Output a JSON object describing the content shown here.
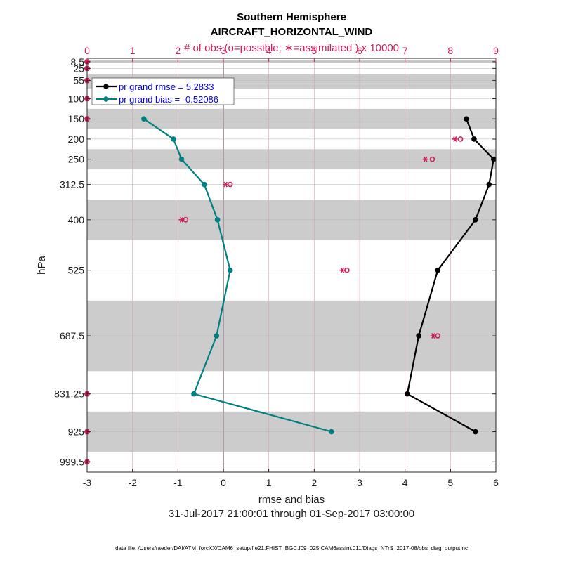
{
  "chart_data": {
    "type": "line",
    "title": "Southern Hemisphere",
    "subtitle": "AIRCRAFT_HORIZONTAL_WIND",
    "top_axis_label": "# of obs (o=possible; ∗=assimilated ) x 10000",
    "xlabel": "rmse and bias",
    "ylabel": "hPa",
    "date_range": "31-Jul-2017 21:00:01 through 01-Sep-2017 03:00:00",
    "footnote": "data file: /Users/raeder/DAI/ATM_forcXX/CAM6_setup/f.e21.FHIST_BGC.f09_025.CAM6assim.011/Diags_NTrS_2017-08/obs_diag_output.nc",
    "xlim": [
      -3,
      6
    ],
    "x_ticks": [
      "-3",
      "-2",
      "-1",
      "0",
      "1",
      "2",
      "3",
      "4",
      "5",
      "6"
    ],
    "top_xlim": [
      0,
      9
    ],
    "top_ticks": [
      "0",
      "1",
      "2",
      "3",
      "4",
      "5",
      "6",
      "7",
      "8",
      "9"
    ],
    "y_scale": "pressure (reversed, top = 0 hPa, bottom = 1025 hPa)",
    "ylim": [
      0,
      1025
    ],
    "levels": [
      8.5,
      25,
      55,
      100,
      150,
      200,
      250,
      312.5,
      400,
      525,
      687.5,
      831.25,
      925,
      999.5
    ],
    "y_tick_labels": [
      "8.5",
      "25",
      "55",
      "100",
      "150",
      "200",
      "250",
      "312.5",
      "400",
      "525",
      "687.5",
      "831.25",
      "925",
      "999.5"
    ],
    "shaded_layer_bounds_hPa": [
      [
        5,
        12
      ],
      [
        40,
        75
      ],
      [
        125,
        175
      ],
      [
        225,
        275
      ],
      [
        350,
        450
      ],
      [
        600,
        775
      ],
      [
        875,
        975
      ]
    ],
    "grid": true,
    "legend_position": "top-left",
    "series": [
      {
        "name": "pr grand rmse = 5.2833",
        "color": "#000000",
        "levels": [
          150,
          200,
          250,
          312.5,
          400,
          525,
          687.5,
          831.25,
          925
        ],
        "values": [
          5.35,
          5.52,
          5.95,
          5.85,
          5.55,
          4.72,
          4.3,
          4.05,
          5.55
        ]
      },
      {
        "name": "pr grand bias = -0.52086",
        "color": "#008080",
        "levels": [
          150,
          200,
          250,
          312.5,
          400,
          525,
          687.5,
          831.25,
          925
        ],
        "values": [
          -1.75,
          -1.1,
          -0.92,
          -0.42,
          -0.13,
          0.15,
          -0.15,
          -0.65,
          2.38
        ]
      }
    ],
    "obs_count_color": "#cc1f5b",
    "obs_counts_x10000": {
      "levels": [
        8.5,
        25,
        55,
        100,
        150,
        200,
        250,
        312.5,
        400,
        525,
        687.5,
        831.25,
        925,
        999.5
      ],
      "possible": [
        0,
        0,
        0,
        0,
        0,
        8.22,
        7.6,
        3.15,
        2.17,
        5.72,
        7.72,
        0,
        0,
        0
      ],
      "assimilated": [
        0,
        0,
        0,
        0,
        0,
        8.1,
        7.45,
        3.05,
        2.08,
        5.62,
        7.62,
        0,
        0,
        0
      ]
    }
  }
}
